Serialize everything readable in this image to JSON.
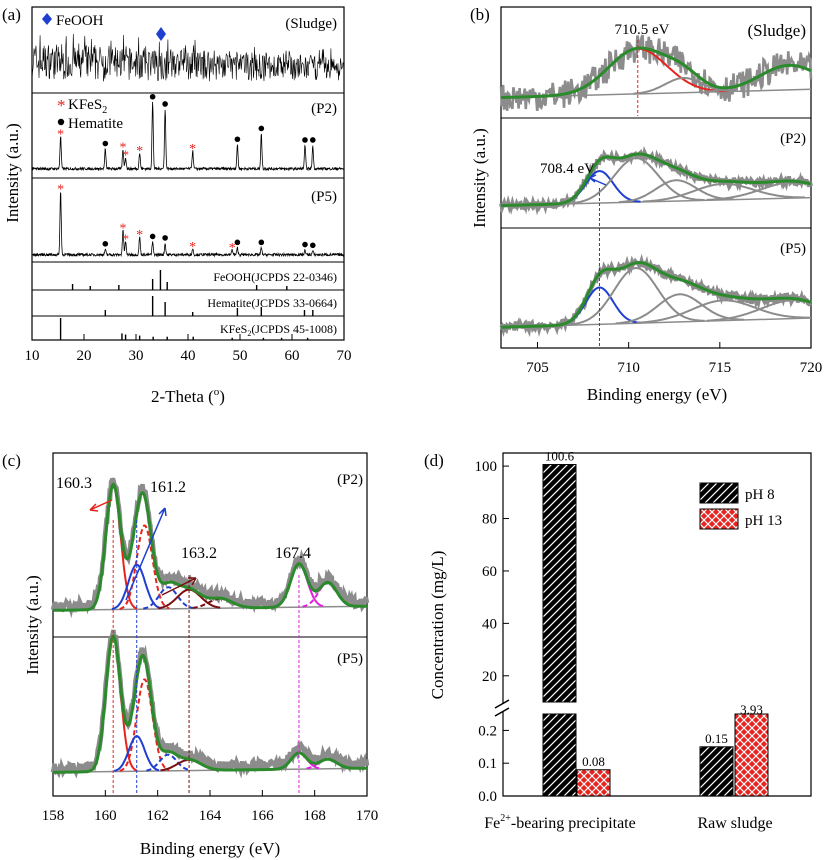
{
  "chart_data": [
    {
      "panel": "(a)",
      "type": "line",
      "title": "",
      "xlabel": "2-Theta (",
      "xlabel_sup": "o",
      "xlabel_end": ")",
      "ylabel": "Intensity (a.u.)",
      "xlim": [
        10,
        70
      ],
      "xticks": [
        "10",
        "20",
        "30",
        "40",
        "50",
        "60",
        "70"
      ],
      "series": [
        {
          "name": "(Sludge)",
          "legend": [
            {
              "marker": "diamond",
              "label": "FeOOH",
              "color": "#1f3fd1"
            }
          ],
          "peaks": [
            {
              "x": 35,
              "marker": "diamond"
            }
          ]
        },
        {
          "name": "(P2)",
          "legend": [
            {
              "marker": "star",
              "label": "KFeS",
              "sub": "2",
              "color": "#e8231d"
            },
            {
              "marker": "dot",
              "label": "Hematite",
              "color": "#000000"
            }
          ],
          "peaks": [
            {
              "x": 15.5,
              "h": 0.45,
              "marker": "star"
            },
            {
              "x": 24.1,
              "h": 0.27,
              "marker": "dot"
            },
            {
              "x": 27.5,
              "h": 0.27,
              "marker": "star"
            },
            {
              "x": 28.0,
              "h": 0.16,
              "marker": "star"
            },
            {
              "x": 30.7,
              "h": 0.22,
              "marker": "star"
            },
            {
              "x": 33.2,
              "h": 0.92,
              "marker": "dot"
            },
            {
              "x": 35.6,
              "h": 0.82,
              "marker": "dot"
            },
            {
              "x": 40.9,
              "h": 0.25,
              "marker": "star"
            },
            {
              "x": 49.5,
              "h": 0.33,
              "marker": "dot"
            },
            {
              "x": 54.1,
              "h": 0.48,
              "marker": "dot"
            },
            {
              "x": 62.5,
              "h": 0.32,
              "marker": "dot"
            },
            {
              "x": 64.0,
              "h": 0.32,
              "marker": "dot"
            }
          ]
        },
        {
          "name": "(P5)",
          "peaks": [
            {
              "x": 15.5,
              "h": 0.86,
              "marker": "star"
            },
            {
              "x": 24.1,
              "h": 0.07,
              "marker": "dot"
            },
            {
              "x": 27.5,
              "h": 0.33,
              "marker": "star"
            },
            {
              "x": 28.0,
              "h": 0.18,
              "marker": "star"
            },
            {
              "x": 30.7,
              "h": 0.24,
              "marker": "star"
            },
            {
              "x": 33.2,
              "h": 0.17,
              "marker": "dot"
            },
            {
              "x": 35.6,
              "h": 0.15,
              "marker": "dot"
            },
            {
              "x": 40.9,
              "h": 0.08,
              "marker": "star"
            },
            {
              "x": 48.5,
              "h": 0.07,
              "marker": "star"
            },
            {
              "x": 49.5,
              "h": 0.09,
              "marker": "dot"
            },
            {
              "x": 54.1,
              "h": 0.09,
              "marker": "dot"
            },
            {
              "x": 62.5,
              "h": 0.06,
              "marker": "dot"
            },
            {
              "x": 64.0,
              "h": 0.05,
              "marker": "dot"
            }
          ]
        }
      ],
      "references": [
        {
          "label": "FeOOH(JCPDS 22-0346)",
          "lines": [
            {
              "x": 17.8,
              "h": 0.3
            },
            {
              "x": 21.2,
              "h": 0.2
            },
            {
              "x": 26.7,
              "h": 0.25
            },
            {
              "x": 33.2,
              "h": 0.55
            },
            {
              "x": 34.7,
              "h": 1.0
            },
            {
              "x": 36.0,
              "h": 0.4
            },
            {
              "x": 53.2,
              "h": 0.25
            },
            {
              "x": 59.0,
              "h": 0.2
            }
          ]
        },
        {
          "label": "Hematite(JCPDS 33-0664)",
          "lines": [
            {
              "x": 24.1,
              "h": 0.3
            },
            {
              "x": 33.2,
              "h": 1.0
            },
            {
              "x": 35.6,
              "h": 0.7
            },
            {
              "x": 40.9,
              "h": 0.2
            },
            {
              "x": 49.5,
              "h": 0.4
            },
            {
              "x": 54.1,
              "h": 0.45
            },
            {
              "x": 62.4,
              "h": 0.3
            },
            {
              "x": 64.0,
              "h": 0.3
            }
          ]
        },
        {
          "label": "KFeS",
          "label_sub": "2",
          "label_end": "(JCPDS 45-1008)",
          "lines": [
            {
              "x": 15.5,
              "h": 1.0
            },
            {
              "x": 27.3,
              "h": 0.3
            },
            {
              "x": 28.0,
              "h": 0.25
            },
            {
              "x": 30.7,
              "h": 0.2
            },
            {
              "x": 33.3,
              "h": 0.15
            },
            {
              "x": 36.0,
              "h": 0.15
            },
            {
              "x": 41.0,
              "h": 0.15
            },
            {
              "x": 48.5,
              "h": 0.1
            },
            {
              "x": 54.5,
              "h": 0.1
            },
            {
              "x": 58.0,
              "h": 0.1
            },
            {
              "x": 63.0,
              "h": 0.1
            }
          ]
        }
      ]
    },
    {
      "panel": "(b)",
      "type": "line",
      "xlabel": "Binding energy (eV)",
      "ylabel": "Intensity (a.u.)",
      "xlim": [
        703,
        720
      ],
      "xticks": [
        "705",
        "710",
        "715",
        "720"
      ],
      "colors": {
        "raw": "#8c8c8c",
        "envelope": "#2b8a2b",
        "fe3": "#e8231d",
        "fe2": "#1f3fd1",
        "comp": "#8c8c8c"
      },
      "series": [
        {
          "name": "(Sludge)",
          "marker_line": 710.5,
          "marker_color": "#e8231d",
          "annotation": "710.5 eV",
          "components": [
            {
              "center": 710.5,
              "width": 1.6,
              "amp": 0.55,
              "color": "fe3"
            },
            {
              "center": 713.0,
              "width": 1.0,
              "amp": 0.18,
              "color": "comp"
            },
            {
              "center": 718.8,
              "width": 1.6,
              "amp": 0.3,
              "color": "comp"
            }
          ]
        },
        {
          "name": "(P2)",
          "marker_line": 708.4,
          "marker_color": "#1f3fd1",
          "annotation": "708.4 eV",
          "components": [
            {
              "center": 708.4,
              "width": 0.75,
              "amp": 0.4,
              "color": "fe2"
            },
            {
              "center": 710.4,
              "width": 1.2,
              "amp": 0.55,
              "color": "comp"
            },
            {
              "center": 712.6,
              "width": 1.1,
              "amp": 0.26,
              "color": "comp"
            },
            {
              "center": 715.2,
              "width": 1.6,
              "amp": 0.2,
              "color": "comp"
            },
            {
              "center": 719.0,
              "width": 1.7,
              "amp": 0.2,
              "color": "comp"
            }
          ]
        },
        {
          "name": "(P5)",
          "components": [
            {
              "center": 708.4,
              "width": 0.75,
              "amp": 0.4,
              "color": "fe2"
            },
            {
              "center": 710.4,
              "width": 1.2,
              "amp": 0.6,
              "color": "comp"
            },
            {
              "center": 712.8,
              "width": 1.2,
              "amp": 0.3,
              "color": "comp"
            },
            {
              "center": 715.2,
              "width": 1.7,
              "amp": 0.22,
              "color": "comp"
            },
            {
              "center": 719.0,
              "width": 1.7,
              "amp": 0.2,
              "color": "comp"
            }
          ]
        }
      ]
    },
    {
      "panel": "(c)",
      "type": "line",
      "xlabel": "Binding energy (eV)",
      "ylabel": "Intensity (a.u.)",
      "xlim": [
        158,
        170
      ],
      "xticks": [
        "158",
        "160",
        "162",
        "164",
        "166",
        "168",
        "170"
      ],
      "annotations": [
        "160.3",
        "161.2",
        "163.2",
        "167.4"
      ],
      "reference_lines": [
        {
          "x": 160.3,
          "color": "#e8231d"
        },
        {
          "x": 161.2,
          "color": "#1f3fd1"
        },
        {
          "x": 163.2,
          "color": "#7a1010"
        },
        {
          "x": 167.4,
          "color": "#e020e0"
        }
      ],
      "series": [
        {
          "name": "(P2)",
          "components": [
            {
              "center": 160.3,
              "width": 0.28,
              "amp": 0.92,
              "color": "#e8231d",
              "dash": false
            },
            {
              "center": 161.5,
              "width": 0.3,
              "amp": 0.62,
              "color": "#e8231d",
              "dash": true
            },
            {
              "center": 161.2,
              "width": 0.32,
              "amp": 0.33,
              "color": "#1f3fd1",
              "dash": false
            },
            {
              "center": 162.4,
              "width": 0.35,
              "amp": 0.16,
              "color": "#1f3fd1",
              "dash": true
            },
            {
              "center": 163.2,
              "width": 0.45,
              "amp": 0.14,
              "color": "#7a1010",
              "dash": false
            },
            {
              "center": 164.4,
              "width": 0.45,
              "amp": 0.07,
              "color": "#7a1010",
              "dash": true
            },
            {
              "center": 167.4,
              "width": 0.32,
              "amp": 0.32,
              "color": "#e020e0",
              "dash": false
            },
            {
              "center": 168.5,
              "width": 0.35,
              "amp": 0.18,
              "color": "#e020e0",
              "dash": true
            }
          ]
        },
        {
          "name": "(P5)",
          "components": [
            {
              "center": 160.3,
              "width": 0.28,
              "amp": 1.0,
              "color": "#e8231d",
              "dash": false
            },
            {
              "center": 161.5,
              "width": 0.3,
              "amp": 0.68,
              "color": "#e8231d",
              "dash": true
            },
            {
              "center": 161.2,
              "width": 0.3,
              "amp": 0.26,
              "color": "#1f3fd1",
              "dash": false
            },
            {
              "center": 162.4,
              "width": 0.32,
              "amp": 0.12,
              "color": "#1f3fd1",
              "dash": true
            },
            {
              "center": 163.2,
              "width": 0.45,
              "amp": 0.08,
              "color": "#7a1010",
              "dash": false
            },
            {
              "center": 167.4,
              "width": 0.3,
              "amp": 0.12,
              "color": "#e020e0",
              "dash": false
            },
            {
              "center": 168.5,
              "width": 0.35,
              "amp": 0.07,
              "color": "#e020e0",
              "dash": true
            }
          ]
        }
      ]
    },
    {
      "panel": "(d)",
      "type": "bar",
      "xlabel": "",
      "ylabel": "Concentration (mg/L)",
      "categories": [
        {
          "label_pre": "Fe",
          "label_sup": "2+",
          "label_post": "-bearing  precipitate"
        },
        {
          "label_pre": "Raw sludge",
          "label_sup": "",
          "label_post": ""
        }
      ],
      "series": [
        {
          "name": "pH 8",
          "values": [
            100.6,
            0.15
          ],
          "labels": [
            "100.6",
            "0.15"
          ],
          "color": "#000000"
        },
        {
          "name": "pH 13",
          "values": [
            0.08,
            3.93
          ],
          "labels": [
            "0.08",
            "3.93"
          ],
          "color": "#e8231d"
        }
      ],
      "axis_break": {
        "lower": [
          0,
          0.25
        ],
        "upper": [
          10,
          105
        ]
      },
      "yticks_upper": [
        "20",
        "40",
        "60",
        "80",
        "100"
      ],
      "yticks_lower": [
        "0.0",
        "0.1",
        "0.2"
      ],
      "legend": "top-right"
    }
  ]
}
